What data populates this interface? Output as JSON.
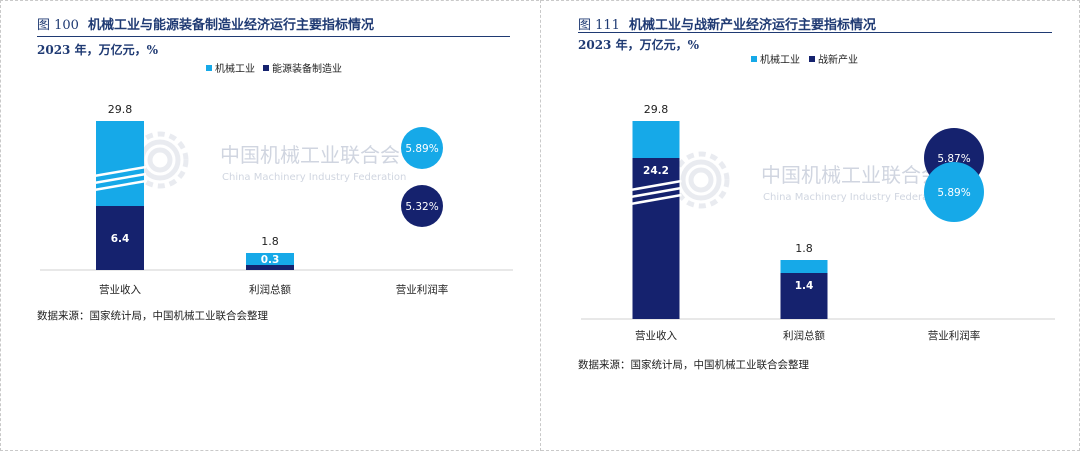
{
  "colors": {
    "light": "#16a9e8",
    "dark": "#15226e",
    "title": "#1f3a73"
  },
  "watermark": {
    "cn": "中国机械工业联合会",
    "en": "China Machinery Industry Federation"
  },
  "panels": [
    {
      "fig_label": "图 100",
      "title": "机械工业与能源装备制造业经济运行主要指标情况",
      "subtitle": "2023 年，万亿元，%",
      "source": "数据来源：国家统计局，中国机械工业联合会整理",
      "legend": [
        "机械工业",
        "能源装备制造业"
      ],
      "categories": [
        "营业收入",
        "利润总额",
        "营业利润率"
      ],
      "bars": [
        {
          "category": "营业收入",
          "total": 29.8,
          "inner": 6.4,
          "total_label": "29.8",
          "inner_label": "6.4"
        },
        {
          "category": "利润总额",
          "total": 1.8,
          "inner": 0.3,
          "total_label": "1.8",
          "inner_label": "0.3"
        }
      ],
      "rates": {
        "category": "营业利润率",
        "a": "5.89%",
        "b": "5.32%"
      }
    },
    {
      "fig_label": "图 111",
      "title": "机械工业与战新产业经济运行主要指标情况",
      "subtitle": "2023 年，万亿元，%",
      "source": "数据来源：国家统计局，中国机械工业联合会整理",
      "legend": [
        "机械工业",
        "战新产业"
      ],
      "categories": [
        "营业收入",
        "利润总额",
        "营业利润率"
      ],
      "bars": [
        {
          "category": "营业收入",
          "total": 29.8,
          "inner": 24.2,
          "total_label": "29.8",
          "inner_label": "24.2"
        },
        {
          "category": "利润总额",
          "total": 1.8,
          "inner": 1.4,
          "total_label": "1.8",
          "inner_label": "1.4"
        }
      ],
      "rates": {
        "category": "营业利润率",
        "a": "5.89%",
        "b": "5.87%"
      }
    }
  ],
  "chart_data": [
    {
      "type": "bar",
      "categories": [
        "营业收入",
        "利润总额"
      ],
      "series": [
        {
          "name": "机械工业",
          "values": [
            29.8,
            1.8
          ]
        },
        {
          "name": "能源装备制造业",
          "values": [
            6.4,
            0.3
          ]
        }
      ],
      "annotations": [
        {
          "category": "营业利润率",
          "机械工业": 5.89,
          "能源装备制造业": 5.32
        }
      ],
      "title": "机械工业与能源装备制造业经济运行主要指标情况",
      "subtitle": "2023 年，万亿元，%",
      "legend": "top-center",
      "grid": false,
      "broken_axis": true
    },
    {
      "type": "bar",
      "categories": [
        "营业收入",
        "利润总额"
      ],
      "series": [
        {
          "name": "机械工业",
          "values": [
            29.8,
            1.8
          ]
        },
        {
          "name": "战新产业",
          "values": [
            24.2,
            1.4
          ]
        }
      ],
      "annotations": [
        {
          "category": "营业利润率",
          "机械工业": 5.89,
          "战新产业": 5.87
        }
      ],
      "title": "机械工业与战新产业经济运行主要指标情况",
      "subtitle": "2023 年，万亿元，%",
      "legend": "top-center",
      "grid": false,
      "broken_axis": true
    }
  ]
}
